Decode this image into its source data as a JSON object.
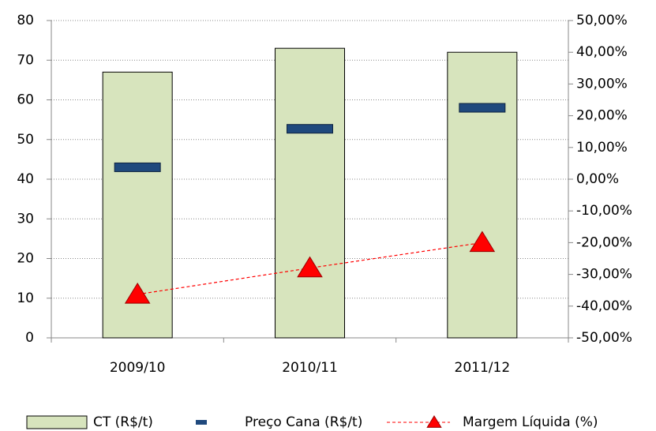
{
  "chart_data": {
    "type": "bar",
    "categories": [
      "2009/10",
      "2010/11",
      "2011/12"
    ],
    "series": [
      {
        "name": "CT (R$/t)",
        "type": "bar",
        "color": "#d7e4bd",
        "values": [
          67,
          73,
          72
        ]
      },
      {
        "name": "Preço Cana (R$/t)",
        "type": "marker",
        "color": "#1f497d",
        "values": [
          43,
          52.7,
          58
        ]
      },
      {
        "name": "Margem Líquida (%)",
        "type": "line",
        "axis": "y2",
        "color": "#ff0000",
        "values": [
          -36.3,
          -28,
          -20
        ]
      }
    ],
    "ylim": [
      0,
      80
    ],
    "yticks": [
      0,
      10,
      20,
      30,
      40,
      50,
      60,
      70,
      80
    ],
    "y2lim": [
      -50,
      50
    ],
    "y2ticks": [
      {
        "value": -50,
        "label": "-50,00%"
      },
      {
        "value": -40,
        "label": "-40,00%"
      },
      {
        "value": -30,
        "label": "-30,00%"
      },
      {
        "value": -20,
        "label": "-20,00%"
      },
      {
        "value": -10,
        "label": "-10,00%"
      },
      {
        "value": 0,
        "label": "0,00%"
      },
      {
        "value": 10,
        "label": "10,00%"
      },
      {
        "value": 20,
        "label": "20,00%"
      },
      {
        "value": 30,
        "label": "30,00%"
      },
      {
        "value": 40,
        "label": "40,00%"
      },
      {
        "value": 50,
        "label": "50,00%"
      }
    ],
    "grid": true,
    "legend": "bottom"
  }
}
